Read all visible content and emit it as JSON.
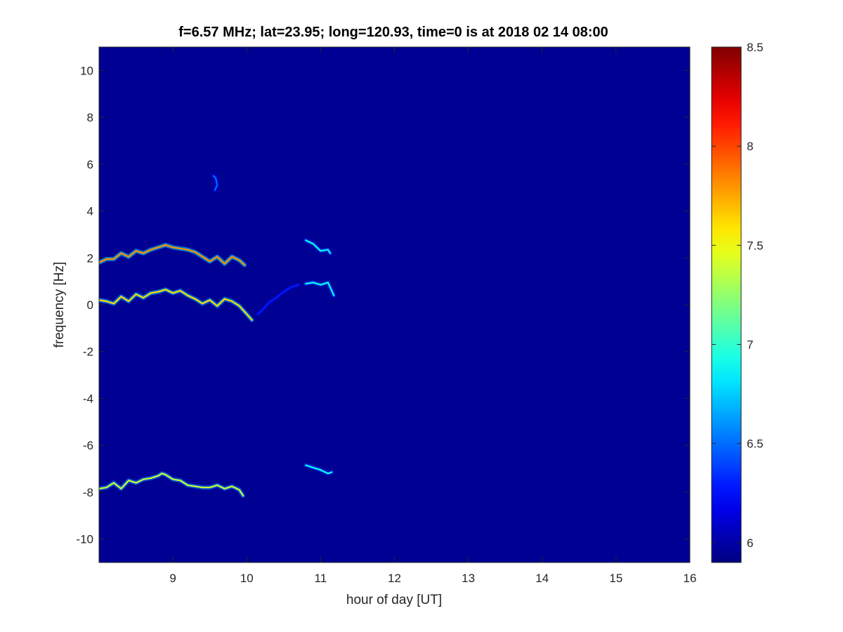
{
  "chart_data": {
    "type": "heatmap",
    "title": "f=6.57 MHz;  lat=23.95; long=120.93, time=0 is at 2018 02 14 08:00",
    "xlabel": "hour of day [UT]",
    "ylabel": "frequency [Hz]",
    "xlim": [
      8,
      16
    ],
    "ylim": [
      -11,
      11
    ],
    "xticks": [
      9,
      10,
      11,
      12,
      13,
      14,
      15,
      16
    ],
    "yticks": [
      -10,
      -8,
      -6,
      -4,
      -2,
      0,
      2,
      4,
      6,
      8,
      10
    ],
    "colorbar": {
      "range": [
        5.9,
        8.5
      ],
      "ticks": [
        6,
        6.5,
        7,
        7.5,
        8,
        8.5
      ],
      "colormap": "jet"
    },
    "background_value": 5.95,
    "grid": false,
    "traces": [
      {
        "points": [
          [
            8.0,
            1.8
          ],
          [
            8.1,
            1.95
          ],
          [
            8.2,
            1.95
          ],
          [
            8.3,
            2.2
          ],
          [
            8.4,
            2.05
          ],
          [
            8.5,
            2.3
          ],
          [
            8.6,
            2.2
          ],
          [
            8.7,
            2.35
          ],
          [
            8.8,
            2.45
          ],
          [
            8.9,
            2.55
          ],
          [
            9.0,
            2.45
          ],
          [
            9.1,
            2.4
          ],
          [
            9.2,
            2.35
          ],
          [
            9.3,
            2.25
          ],
          [
            9.4,
            2.05
          ],
          [
            9.5,
            1.85
          ],
          [
            9.6,
            2.05
          ],
          [
            9.7,
            1.75
          ],
          [
            9.8,
            2.05
          ],
          [
            9.9,
            1.9
          ],
          [
            9.97,
            1.7
          ]
        ],
        "peak": 7.8
      },
      {
        "points": [
          [
            8.0,
            0.2
          ],
          [
            8.1,
            0.15
          ],
          [
            8.2,
            0.05
          ],
          [
            8.3,
            0.35
          ],
          [
            8.4,
            0.15
          ],
          [
            8.5,
            0.45
          ],
          [
            8.6,
            0.3
          ],
          [
            8.7,
            0.5
          ],
          [
            8.8,
            0.55
          ],
          [
            8.9,
            0.65
          ],
          [
            9.0,
            0.5
          ],
          [
            9.1,
            0.6
          ],
          [
            9.2,
            0.4
          ],
          [
            9.3,
            0.25
          ],
          [
            9.4,
            0.05
          ],
          [
            9.5,
            0.2
          ],
          [
            9.6,
            -0.05
          ],
          [
            9.7,
            0.25
          ],
          [
            9.8,
            0.15
          ],
          [
            9.9,
            -0.05
          ],
          [
            10.0,
            -0.4
          ],
          [
            10.07,
            -0.65
          ]
        ],
        "peak": 7.6
      },
      {
        "points": [
          [
            8.0,
            -7.85
          ],
          [
            8.1,
            -7.8
          ],
          [
            8.2,
            -7.6
          ],
          [
            8.3,
            -7.85
          ],
          [
            8.4,
            -7.5
          ],
          [
            8.5,
            -7.6
          ],
          [
            8.6,
            -7.45
          ],
          [
            8.7,
            -7.4
          ],
          [
            8.8,
            -7.3
          ],
          [
            8.85,
            -7.2
          ],
          [
            8.9,
            -7.25
          ],
          [
            9.0,
            -7.45
          ],
          [
            9.1,
            -7.5
          ],
          [
            9.2,
            -7.7
          ],
          [
            9.3,
            -7.75
          ],
          [
            9.4,
            -7.8
          ],
          [
            9.5,
            -7.8
          ],
          [
            9.6,
            -7.7
          ],
          [
            9.7,
            -7.85
          ],
          [
            9.8,
            -7.75
          ],
          [
            9.9,
            -7.9
          ],
          [
            9.95,
            -8.15
          ]
        ],
        "peak": 7.4
      },
      {
        "points": [
          [
            10.8,
            0.9
          ],
          [
            10.9,
            0.95
          ],
          [
            11.0,
            0.85
          ],
          [
            11.1,
            0.95
          ],
          [
            11.18,
            0.4
          ]
        ],
        "peak": 6.9
      },
      {
        "points": [
          [
            10.8,
            2.75
          ],
          [
            10.9,
            2.6
          ],
          [
            10.95,
            2.45
          ],
          [
            11.0,
            2.3
          ],
          [
            11.1,
            2.35
          ],
          [
            11.13,
            2.2
          ]
        ],
        "peak": 6.9
      },
      {
        "points": [
          [
            10.8,
            -6.85
          ],
          [
            10.9,
            -6.95
          ],
          [
            11.0,
            -7.05
          ],
          [
            11.1,
            -7.2
          ],
          [
            11.15,
            -7.15
          ]
        ],
        "peak": 6.9
      },
      {
        "points": [
          [
            9.55,
            5.5
          ],
          [
            9.58,
            5.4
          ],
          [
            9.6,
            5.1
          ],
          [
            9.57,
            4.9
          ]
        ],
        "peak": 6.5
      },
      {
        "points": [
          [
            10.15,
            -0.4
          ],
          [
            10.22,
            -0.2
          ],
          [
            10.3,
            0.1
          ],
          [
            10.4,
            0.3
          ],
          [
            10.5,
            0.55
          ],
          [
            10.6,
            0.75
          ],
          [
            10.7,
            0.85
          ]
        ],
        "peak": 6.3
      }
    ]
  }
}
